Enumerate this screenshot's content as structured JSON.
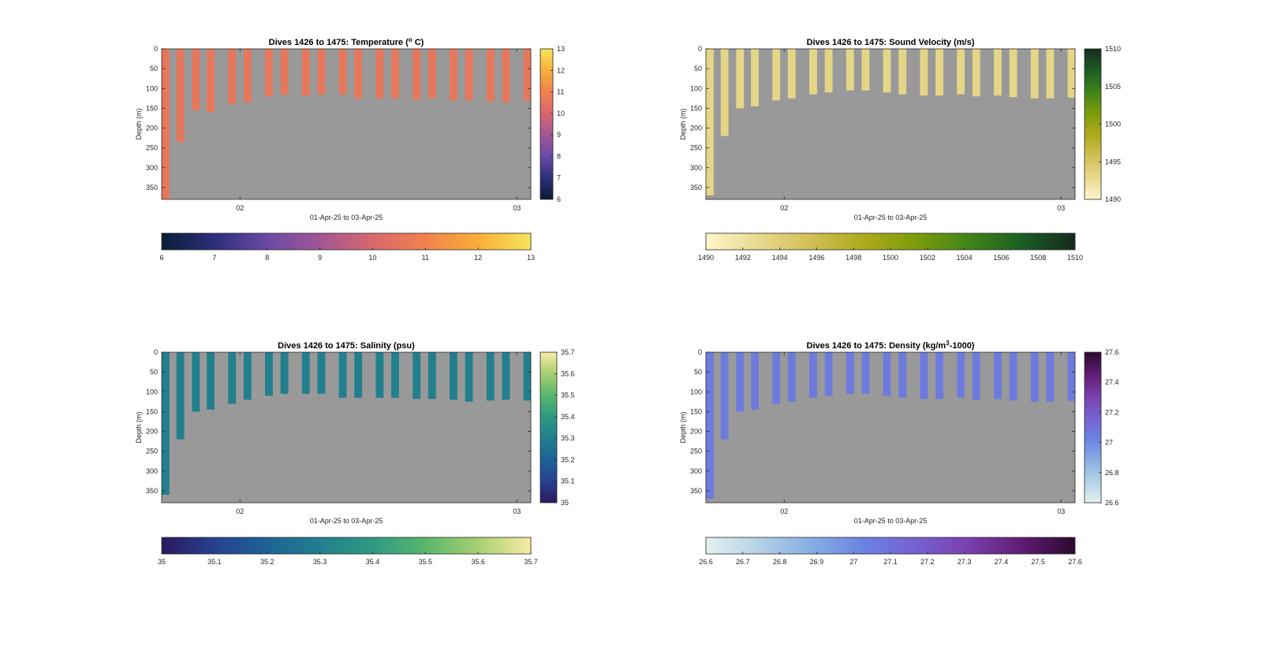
{
  "chart_data": [
    {
      "type": "heatmap",
      "title_pre": "Dives 1426 to 1475: Temperature (",
      "title_sup": "o",
      "title_post": " C)",
      "xlabel": "01-Apr-25 to 03-Apr-25",
      "ylabel": "Depth (m)",
      "x_tick_labels": [
        "02",
        "03"
      ],
      "y_tick_labels": [
        "0",
        "50",
        "100",
        "150",
        "200",
        "250",
        "300",
        "350"
      ],
      "ylim": [
        0,
        380
      ],
      "background_color": "#999999",
      "colormap": [
        "#0b1d36",
        "#2d2f7a",
        "#6a4aa6",
        "#a15695",
        "#d9676e",
        "#f1824d",
        "#f9ae3a",
        "#f5e65c"
      ],
      "clim": [
        6,
        13
      ],
      "side_colorbar_ticks": [
        "13",
        "12",
        "11",
        "10",
        "9",
        "8",
        "7",
        "6"
      ],
      "bottom_colorbar_ticks": [
        "6",
        "7",
        "8",
        "9",
        "10",
        "11",
        "12",
        "13"
      ],
      "value_fill": 10.6,
      "profile_max_depth_m": [
        380,
        235,
        155,
        160,
        140,
        135,
        120,
        115,
        118,
        115,
        115,
        125,
        125,
        125,
        128,
        125,
        130,
        130,
        133,
        135,
        130
      ]
    },
    {
      "type": "heatmap",
      "title_pre": "Dives 1426 to 1475: Sound Velocity (m/s)",
      "title_sup": "",
      "title_post": "",
      "xlabel": "01-Apr-25 to 03-Apr-25",
      "ylabel": "Depth (m)",
      "x_tick_labels": [
        "02",
        "03"
      ],
      "y_tick_labels": [
        "0",
        "50",
        "100",
        "150",
        "200",
        "250",
        "300",
        "350"
      ],
      "ylim": [
        0,
        380
      ],
      "background_color": "#999999",
      "colormap": [
        "#fdf6cc",
        "#e8d98e",
        "#d2bf55",
        "#aeaa1c",
        "#7c9b0c",
        "#3f8418",
        "#1c5e24",
        "#152b1d"
      ],
      "clim": [
        1490,
        1510
      ],
      "side_colorbar_ticks": [
        "1510",
        "1505",
        "1500",
        "1495",
        "1490"
      ],
      "bottom_colorbar_ticks": [
        "1490",
        "1492",
        "1494",
        "1496",
        "1498",
        "1500",
        "1502",
        "1504",
        "1506",
        "1508",
        "1510"
      ],
      "value_fill": 1493.2,
      "profile_max_depth_m": [
        370,
        220,
        150,
        145,
        130,
        125,
        115,
        110,
        105,
        105,
        110,
        115,
        118,
        118,
        115,
        120,
        118,
        122,
        125,
        125,
        123
      ]
    },
    {
      "type": "heatmap",
      "title_pre": "Dives 1426 to 1475: Salinity (psu)",
      "title_sup": "",
      "title_post": "",
      "xlabel": "01-Apr-25 to 03-Apr-25",
      "ylabel": "Depth (m)",
      "x_tick_labels": [
        "02",
        "03"
      ],
      "y_tick_labels": [
        "0",
        "50",
        "100",
        "150",
        "200",
        "250",
        "300",
        "350"
      ],
      "ylim": [
        0,
        380
      ],
      "background_color": "#999999",
      "colormap": [
        "#2a1a5e",
        "#27408f",
        "#1d6396",
        "#227f8e",
        "#2e9a82",
        "#59b66c",
        "#a8cf73",
        "#f7eca4"
      ],
      "clim": [
        35,
        35.7
      ],
      "side_colorbar_ticks": [
        "35.7",
        "35.6",
        "35.5",
        "35.4",
        "35.3",
        "35.2",
        "35.1",
        "35"
      ],
      "bottom_colorbar_ticks": [
        "35",
        "35.1",
        "35.2",
        "35.3",
        "35.4",
        "35.5",
        "35.6",
        "35.7"
      ],
      "value_fill": 35.3,
      "profile_max_depth_m": [
        360,
        220,
        150,
        145,
        130,
        120,
        110,
        105,
        105,
        105,
        115,
        115,
        115,
        115,
        118,
        118,
        120,
        125,
        122,
        120,
        122
      ]
    },
    {
      "type": "heatmap",
      "title_pre": "Dives 1426 to 1475: Density (kg/m",
      "title_sup": "3",
      "title_post": "-1000)",
      "xlabel": "01-Apr-25 to 03-Apr-25",
      "ylabel": "Depth (m)",
      "x_tick_labels": [
        "02",
        "03"
      ],
      "y_tick_labels": [
        "0",
        "50",
        "100",
        "150",
        "200",
        "250",
        "300",
        "350"
      ],
      "ylim": [
        0,
        380
      ],
      "background_color": "#999999",
      "colormap": [
        "#e4f1f1",
        "#b4d2e6",
        "#86aee3",
        "#6b82e2",
        "#7660cf",
        "#7a3fad",
        "#5f1c72",
        "#2c0a2f"
      ],
      "clim": [
        26.6,
        27.6
      ],
      "side_colorbar_ticks": [
        "27.6",
        "27.4",
        "27.2",
        "27",
        "26.8",
        "26.6"
      ],
      "bottom_colorbar_ticks": [
        "26.6",
        "26.7",
        "26.8",
        "26.9",
        "27",
        "27.1",
        "27.2",
        "27.3",
        "27.4",
        "27.5",
        "27.6"
      ],
      "value_fill": 27.06,
      "profile_max_depth_m": [
        370,
        220,
        150,
        145,
        130,
        125,
        115,
        110,
        105,
        105,
        110,
        115,
        118,
        118,
        115,
        120,
        118,
        122,
        125,
        125,
        123
      ]
    }
  ]
}
